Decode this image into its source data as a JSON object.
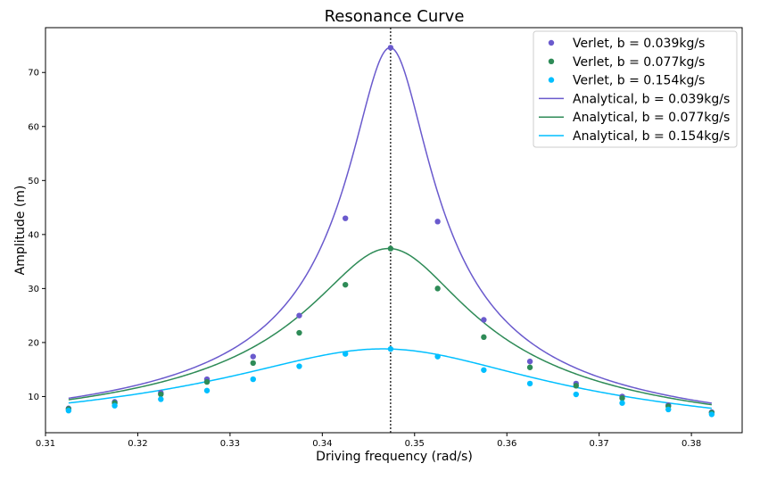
{
  "chart_data": {
    "type": "line",
    "title": "Resonance Curve",
    "xlabel": "Driving frequency (rad/s)",
    "ylabel": "Amplitude (m)",
    "xlim": [
      0.31,
      0.3855
    ],
    "ylim": [
      3.3,
      78.3
    ],
    "xticks": [
      0.31,
      0.32,
      0.33,
      0.34,
      0.35,
      0.36,
      0.37,
      0.38
    ],
    "yticks": [
      10,
      20,
      30,
      40,
      50,
      60,
      70
    ],
    "resonance_line_x": 0.3474,
    "grid": false,
    "legend_position": "top-right",
    "scatter_x": [
      0.3125,
      0.3175,
      0.3225,
      0.3275,
      0.3325,
      0.3375,
      0.3425,
      0.3474,
      0.3525,
      0.3575,
      0.3625,
      0.3675,
      0.3725,
      0.3775,
      0.3822
    ],
    "series": [
      {
        "name": "Verlet, b = 0.039kg/s",
        "kind": "scatter",
        "color": "#6a5acd",
        "values": [
          7.8,
          9.0,
          10.7,
          13.2,
          17.4,
          25.0,
          43.0,
          74.6,
          42.4,
          24.2,
          16.5,
          12.4,
          10.0,
          8.4,
          7.1
        ]
      },
      {
        "name": "Verlet, b = 0.077kg/s",
        "kind": "scatter",
        "color": "#2e8b57",
        "values": [
          7.7,
          8.8,
          10.4,
          12.7,
          16.2,
          21.8,
          30.7,
          37.4,
          30.0,
          21.0,
          15.4,
          12.0,
          9.7,
          8.2,
          7.0
        ]
      },
      {
        "name": "Verlet, b = 0.154kg/s",
        "kind": "scatter",
        "color": "#00bfff",
        "values": [
          7.4,
          8.3,
          9.5,
          11.1,
          13.2,
          15.6,
          17.9,
          18.8,
          17.4,
          14.9,
          12.4,
          10.4,
          8.8,
          7.6,
          6.7
        ]
      },
      {
        "name": "Analytical, b = 0.039kg/s",
        "kind": "line",
        "color": "#6a5acd",
        "damping": 0.039
      },
      {
        "name": "Analytical, b = 0.077kg/s",
        "kind": "line",
        "color": "#2e8b57",
        "damping": 0.077
      },
      {
        "name": "Analytical, b = 0.154kg/s",
        "kind": "line",
        "color": "#00bfff",
        "damping": 0.154
      }
    ]
  }
}
